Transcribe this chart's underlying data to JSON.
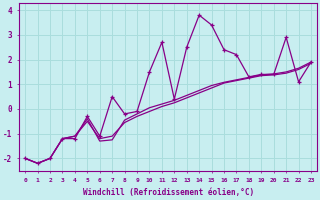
{
  "xlabel": "Windchill (Refroidissement éolien,°C)",
  "x_values": [
    0,
    1,
    2,
    3,
    4,
    5,
    6,
    7,
    8,
    9,
    10,
    11,
    12,
    13,
    14,
    15,
    16,
    17,
    18,
    19,
    20,
    21,
    22,
    23
  ],
  "y_main": [
    -2.0,
    -2.2,
    -2.0,
    -1.2,
    -1.2,
    -0.3,
    -1.1,
    0.5,
    -0.2,
    -0.1,
    1.5,
    2.7,
    0.4,
    2.5,
    3.8,
    3.4,
    2.4,
    2.2,
    1.3,
    1.4,
    1.4,
    2.9,
    1.1,
    1.9
  ],
  "y_line1": [
    -2.0,
    -2.2,
    -2.0,
    -1.2,
    -1.1,
    -0.5,
    -1.2,
    -1.1,
    -0.55,
    -0.3,
    -0.1,
    0.1,
    0.25,
    0.45,
    0.65,
    0.85,
    1.05,
    1.15,
    1.25,
    1.35,
    1.38,
    1.45,
    1.6,
    1.85
  ],
  "y_line2": [
    -2.0,
    -2.2,
    -2.0,
    -1.2,
    -1.1,
    -0.4,
    -1.3,
    -1.25,
    -0.45,
    -0.2,
    0.05,
    0.2,
    0.35,
    0.55,
    0.75,
    0.95,
    1.08,
    1.18,
    1.28,
    1.38,
    1.42,
    1.5,
    1.65,
    1.9
  ],
  "line_color": "#880088",
  "bg_color": "#c8eef0",
  "grid_color": "#aadddd",
  "ylim": [
    -2.5,
    4.3
  ],
  "xlim": [
    -0.5,
    23.5
  ],
  "yticks": [
    -2,
    -1,
    0,
    1,
    2,
    3,
    4
  ]
}
